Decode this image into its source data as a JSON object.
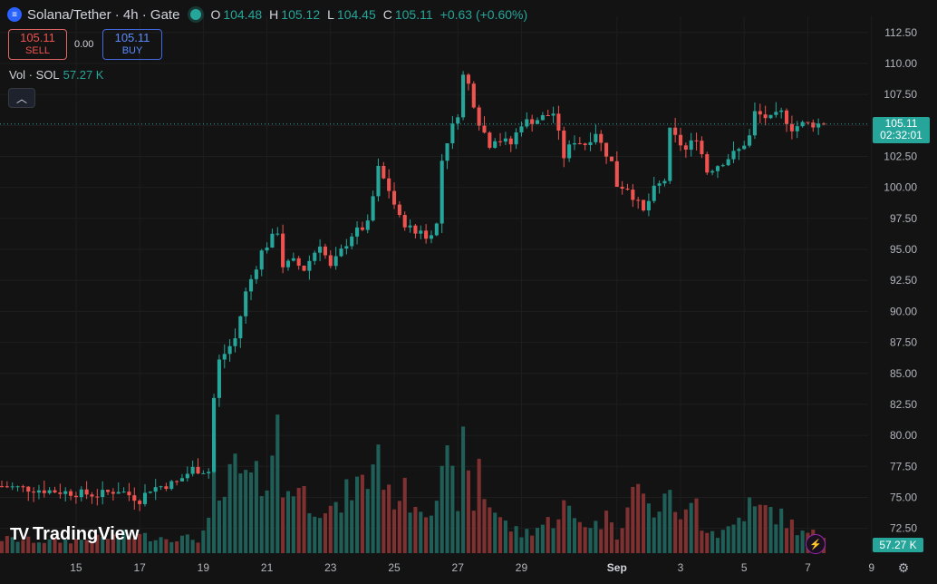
{
  "header": {
    "title": "Solana/Tether · 4h · Gate",
    "ohlc": [
      {
        "k": "O",
        "v": "104.48"
      },
      {
        "k": "H",
        "v": "105.12"
      },
      {
        "k": "L",
        "v": "104.45"
      },
      {
        "k": "C",
        "v": "105.11"
      },
      {
        "k": "",
        "v": "+0.63 (+0.60%)"
      }
    ],
    "symbol_icon": "menu-lines-icon",
    "status_color": "#26a69a"
  },
  "trade": {
    "sell_price": "105.11",
    "sell_label": "SELL",
    "spread": "0.00",
    "buy_price": "105.11",
    "buy_label": "BUY"
  },
  "volume_legend": {
    "label": "Vol · SOL",
    "value": "57.27 K"
  },
  "collapse_icon": "chevron-up-icon",
  "branding": {
    "logo_mark": "TV",
    "name": "TradingView"
  },
  "price_tag": {
    "price": "105.11",
    "countdown": "02:32:01"
  },
  "volume_tag": "57.27 K",
  "colors": {
    "up": "#26a69a",
    "down": "#ef5350",
    "vol_up": "#1f5f58",
    "vol_down": "#7f3131",
    "background": "#131313",
    "grid": "#1e1e1e",
    "axis_text": "#b2b5be"
  },
  "chart_data": {
    "type": "candlestick",
    "interval": "4h",
    "y_axis": {
      "ticks": [
        72.5,
        75.0,
        77.5,
        80.0,
        82.5,
        85.0,
        87.5,
        90.0,
        92.5,
        95.0,
        97.5,
        100.0,
        102.5,
        105.0,
        107.5,
        110.0,
        112.5
      ],
      "range": [
        70.5,
        113.8
      ]
    },
    "x_axis": {
      "ticks": [
        {
          "label": "15",
          "i": 14
        },
        {
          "label": "17",
          "i": 26
        },
        {
          "label": "19",
          "i": 38
        },
        {
          "label": "21",
          "i": 50
        },
        {
          "label": "23",
          "i": 62
        },
        {
          "label": "25",
          "i": 74
        },
        {
          "label": "27",
          "i": 86
        },
        {
          "label": "29",
          "i": 98
        },
        {
          "label": "Sep",
          "i": 116
        },
        {
          "label": "3",
          "i": 128
        },
        {
          "label": "5",
          "i": 140
        },
        {
          "label": "7",
          "i": 152
        },
        {
          "label": "9",
          "i": 164
        }
      ],
      "bar_count": 156
    },
    "ohlc_path": [
      [
        0,
        75.9
      ],
      [
        10,
        75.5
      ],
      [
        18,
        75.2
      ],
      [
        22,
        75.6
      ],
      [
        24,
        75.2
      ],
      [
        26,
        74.8
      ],
      [
        28,
        75.7
      ],
      [
        33,
        76.2
      ],
      [
        36,
        77.3
      ],
      [
        39,
        77.1
      ],
      [
        40,
        83.0
      ],
      [
        41,
        86.0
      ],
      [
        44,
        87.8
      ],
      [
        46,
        91.5
      ],
      [
        49,
        94.8
      ],
      [
        52,
        96.5
      ],
      [
        53,
        93.7
      ],
      [
        55,
        94.0
      ],
      [
        57,
        93.4
      ],
      [
        60,
        95.5
      ],
      [
        62,
        93.5
      ],
      [
        66,
        96.2
      ],
      [
        69,
        97.0
      ],
      [
        71,
        101.5
      ],
      [
        73,
        99.8
      ],
      [
        75,
        97.5
      ],
      [
        78,
        96.3
      ],
      [
        79,
        96.7
      ],
      [
        80,
        95.8
      ],
      [
        81,
        96.5
      ],
      [
        82,
        97.0
      ],
      [
        83,
        102.2
      ],
      [
        84,
        103.8
      ],
      [
        86,
        106.0
      ],
      [
        87,
        109.0
      ],
      [
        88,
        108.3
      ],
      [
        90,
        105.3
      ],
      [
        92,
        103.5
      ],
      [
        93,
        104.0
      ],
      [
        96,
        103.5
      ],
      [
        98,
        105.2
      ],
      [
        101,
        105.5
      ],
      [
        104,
        106.0
      ],
      [
        106,
        102.5
      ],
      [
        107,
        103.2
      ],
      [
        108,
        103.8
      ],
      [
        110,
        103.5
      ],
      [
        112,
        104.5
      ],
      [
        113,
        103.5
      ],
      [
        115,
        102.0
      ],
      [
        116,
        100.2
      ],
      [
        118,
        100.0
      ],
      [
        121,
        98.0
      ],
      [
        123,
        99.8
      ],
      [
        125,
        100.6
      ],
      [
        126,
        104.5
      ],
      [
        129,
        103.0
      ],
      [
        131,
        104.1
      ],
      [
        133,
        101.3
      ],
      [
        136,
        102.1
      ],
      [
        139,
        103.0
      ],
      [
        141,
        104.1
      ],
      [
        142,
        106.0
      ],
      [
        145,
        105.5
      ],
      [
        147,
        106.0
      ],
      [
        149,
        104.8
      ],
      [
        151,
        105.11
      ]
    ],
    "volume_path": [
      [
        0,
        6.0
      ],
      [
        9,
        5.0
      ],
      [
        18,
        6.0
      ],
      [
        23,
        7.5
      ],
      [
        33,
        6.5
      ],
      [
        37,
        6.0
      ],
      [
        39,
        12.0
      ],
      [
        40,
        38.0
      ],
      [
        41,
        20.0
      ],
      [
        44,
        35.0
      ],
      [
        46,
        30.0
      ],
      [
        49,
        30.0
      ],
      [
        52,
        51.0
      ],
      [
        53,
        25.0
      ],
      [
        55,
        30.0
      ],
      [
        58,
        22.0
      ],
      [
        61,
        20.0
      ],
      [
        63,
        17.0
      ],
      [
        66,
        28.0
      ],
      [
        69,
        30.0
      ],
      [
        70,
        40.0
      ],
      [
        71,
        45.0
      ],
      [
        73,
        23.0
      ],
      [
        75,
        26.0
      ],
      [
        78,
        22.0
      ],
      [
        80,
        20.0
      ],
      [
        82,
        25.0
      ],
      [
        83,
        30.0
      ],
      [
        84,
        35.0
      ],
      [
        86,
        24.0
      ],
      [
        87,
        42.0
      ],
      [
        89,
        20.0
      ],
      [
        90,
        39.0
      ],
      [
        91,
        25.0
      ],
      [
        93,
        18.0
      ],
      [
        95,
        12.0
      ],
      [
        98,
        8.0
      ],
      [
        101,
        11.0
      ],
      [
        104,
        14.0
      ],
      [
        106,
        20.0
      ],
      [
        108,
        14.0
      ],
      [
        112,
        12.0
      ],
      [
        115,
        16.0
      ],
      [
        116,
        8.0
      ],
      [
        119,
        25.0
      ],
      [
        121,
        28.0
      ],
      [
        122,
        18.0
      ],
      [
        125,
        20.0
      ],
      [
        126,
        30.0
      ],
      [
        128,
        12.0
      ],
      [
        130,
        20.0
      ],
      [
        131,
        30.0
      ],
      [
        132,
        12.0
      ],
      [
        135,
        8.0
      ],
      [
        138,
        12.0
      ],
      [
        141,
        20.0
      ],
      [
        142,
        18.0
      ],
      [
        145,
        18.0
      ],
      [
        147,
        15.0
      ],
      [
        149,
        12.0
      ],
      [
        151,
        8.0
      ]
    ],
    "volume_max": 57.27
  }
}
